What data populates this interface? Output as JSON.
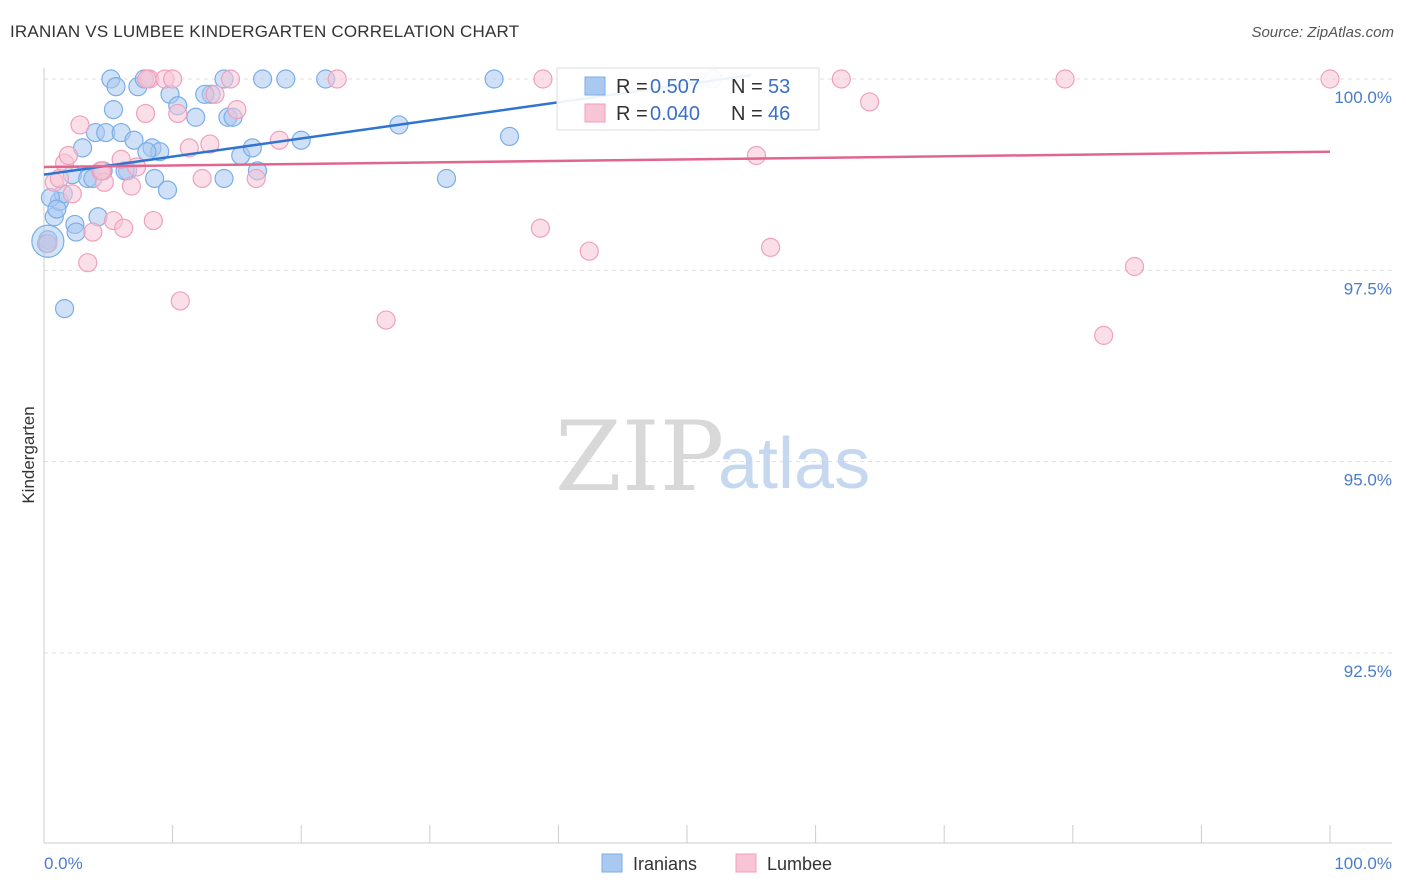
{
  "title": "IRANIAN VS LUMBEE KINDERGARTEN CORRELATION CHART",
  "source": "Source: ZipAtlas.com",
  "watermark": {
    "zip": "ZIP",
    "atlas": "atlas"
  },
  "colors": {
    "blue": "#7aaee8",
    "blue_fill": "#a9c9f0",
    "blue_line": "#2f74d0",
    "pink": "#f0a0bb",
    "pink_fill": "#f7c5d5",
    "pink_line": "#e0658f",
    "grid": "#dddddd",
    "tick_text": "#4a7cc9"
  },
  "chart_data": {
    "type": "scatter",
    "title": "IRANIAN VS LUMBEE KINDERGARTEN CORRELATION CHART",
    "xlabel": "",
    "ylabel": "Kindergarten",
    "xlim": [
      0,
      100
    ],
    "ylim": [
      90.2,
      100.4
    ],
    "x_tick_labels": [
      {
        "value": 0,
        "label": "0.0%"
      },
      {
        "value": 100,
        "label": "100.0%"
      }
    ],
    "y_ticks": [
      {
        "value": 100,
        "label": "100.0%"
      },
      {
        "value": 97.5,
        "label": "97.5%"
      },
      {
        "value": 95,
        "label": "95.0%"
      },
      {
        "value": 92.5,
        "label": "92.5%"
      }
    ],
    "legend": [
      {
        "name": "Iranians",
        "r_label": "R =",
        "r_value": "0.507",
        "n_label": "N =",
        "n_value": "53"
      },
      {
        "name": "Lumbee",
        "r_label": "R =",
        "r_value": "0.040",
        "n_label": "N =",
        "n_value": "46"
      }
    ],
    "series": [
      {
        "name": "Iranians",
        "trend": {
          "x": [
            0,
            55
          ],
          "y": [
            98.75,
            100.05
          ]
        },
        "points": [
          [
            0.3,
            97.9
          ],
          [
            0.8,
            98.2
          ],
          [
            1.2,
            98.4
          ],
          [
            1.5,
            98.5
          ],
          [
            1.6,
            97.0
          ],
          [
            2.2,
            98.75
          ],
          [
            2.4,
            98.1
          ],
          [
            2.5,
            98.0
          ],
          [
            3.0,
            99.1
          ],
          [
            3.4,
            98.7
          ],
          [
            3.8,
            98.7
          ],
          [
            4.0,
            99.3
          ],
          [
            4.2,
            98.2
          ],
          [
            4.6,
            98.8
          ],
          [
            4.8,
            99.3
          ],
          [
            5.2,
            100.0
          ],
          [
            5.4,
            99.6
          ],
          [
            5.6,
            99.9
          ],
          [
            6.0,
            99.3
          ],
          [
            6.5,
            98.8
          ],
          [
            7.0,
            99.2
          ],
          [
            7.3,
            99.9
          ],
          [
            7.8,
            100.0
          ],
          [
            8.4,
            99.1
          ],
          [
            8.6,
            98.7
          ],
          [
            9.0,
            99.05
          ],
          [
            9.6,
            98.55
          ],
          [
            9.8,
            99.8
          ],
          [
            10.4,
            99.65
          ],
          [
            11.8,
            99.5
          ],
          [
            13.0,
            99.8
          ],
          [
            14.0,
            100.0
          ],
          [
            14.0,
            98.7
          ],
          [
            14.3,
            99.5
          ],
          [
            14.7,
            99.5
          ],
          [
            15.3,
            99.0
          ],
          [
            16.2,
            99.1
          ],
          [
            16.6,
            98.8
          ],
          [
            17.0,
            100.0
          ],
          [
            18.8,
            100.0
          ],
          [
            20.0,
            99.2
          ],
          [
            21.9,
            100.0
          ],
          [
            27.6,
            99.4
          ],
          [
            31.3,
            98.7
          ],
          [
            35.0,
            100.0
          ],
          [
            36.2,
            99.25
          ],
          [
            52.0,
            100.0
          ],
          [
            0.5,
            98.45
          ],
          [
            1.0,
            98.3
          ],
          [
            6.3,
            98.8
          ],
          [
            12.5,
            99.8
          ],
          [
            0.2,
            97.85
          ],
          [
            8.0,
            99.05
          ]
        ]
      },
      {
        "name": "Lumbee",
        "trend": {
          "x": [
            0,
            100
          ],
          "y": [
            98.85,
            99.05
          ]
        },
        "points": [
          [
            0.3,
            97.85
          ],
          [
            0.8,
            98.65
          ],
          [
            1.2,
            98.7
          ],
          [
            1.6,
            98.9
          ],
          [
            1.9,
            99.0
          ],
          [
            2.2,
            98.5
          ],
          [
            2.8,
            99.4
          ],
          [
            3.4,
            97.6
          ],
          [
            3.8,
            98.0
          ],
          [
            4.4,
            98.8
          ],
          [
            4.7,
            98.65
          ],
          [
            5.4,
            98.15
          ],
          [
            6.0,
            98.95
          ],
          [
            6.2,
            98.05
          ],
          [
            6.8,
            98.6
          ],
          [
            7.2,
            98.85
          ],
          [
            7.9,
            99.55
          ],
          [
            8.2,
            100.0
          ],
          [
            8.5,
            98.15
          ],
          [
            9.4,
            100.0
          ],
          [
            10.0,
            100.0
          ],
          [
            10.4,
            99.55
          ],
          [
            10.6,
            97.1
          ],
          [
            11.3,
            99.1
          ],
          [
            12.3,
            98.7
          ],
          [
            12.9,
            99.15
          ],
          [
            13.3,
            99.8
          ],
          [
            14.5,
            100.0
          ],
          [
            15.0,
            99.6
          ],
          [
            16.5,
            98.7
          ],
          [
            18.3,
            99.2
          ],
          [
            22.8,
            100.0
          ],
          [
            26.6,
            96.85
          ],
          [
            38.6,
            98.05
          ],
          [
            38.8,
            100.0
          ],
          [
            42.4,
            97.75
          ],
          [
            55.4,
            99.0
          ],
          [
            56.5,
            97.8
          ],
          [
            62.0,
            100.0
          ],
          [
            64.2,
            99.7
          ],
          [
            79.4,
            100.0
          ],
          [
            84.8,
            97.55
          ],
          [
            82.4,
            96.65
          ],
          [
            100.0,
            100.0
          ],
          [
            4.5,
            98.8
          ],
          [
            8.0,
            100.0
          ]
        ]
      }
    ]
  }
}
